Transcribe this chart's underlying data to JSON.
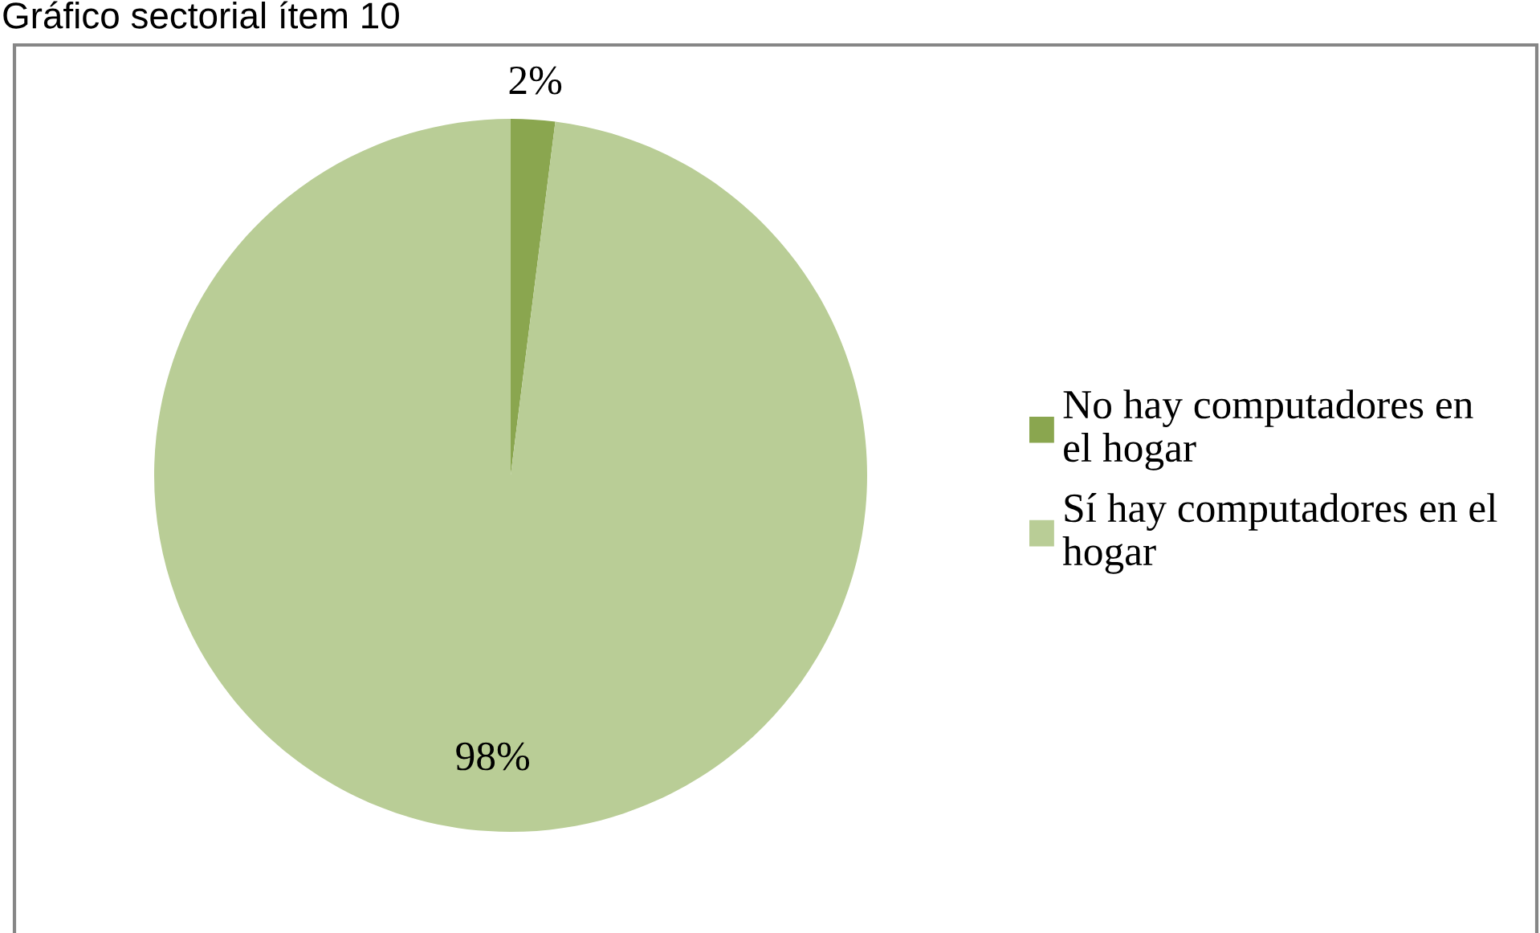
{
  "chart_data": {
    "type": "pie",
    "title": "Gráfico sectorial ítem 10",
    "categories": [
      "No hay computadores en\nel hogar",
      "Sí hay computadores en el\nhogar"
    ],
    "values": [
      2,
      98
    ],
    "colors": [
      "#8aa64f",
      "#b9cd96"
    ],
    "value_labels": [
      "2%",
      "98%"
    ],
    "legend": "right"
  }
}
